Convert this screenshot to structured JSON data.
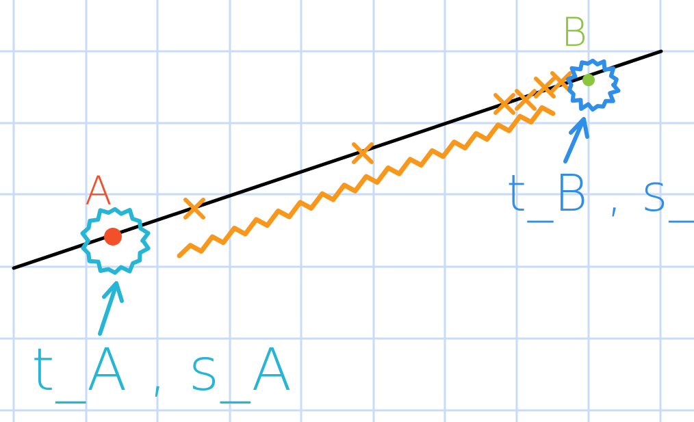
{
  "point_a": {
    "label": "A",
    "note": "t_A , s_A",
    "label_color": "#f2502a",
    "dot_color": "#f2502a",
    "circle_color": "#27b5d6"
  },
  "point_b": {
    "label": "B",
    "note": "t_B , s_B",
    "label_color": "#8cc63f",
    "dot_color": "#8cc63f",
    "circle_color": "#2f8ee8"
  },
  "colors": {
    "grid": "#c8dcf7",
    "line": "#000000",
    "marks": "#f7981d",
    "path": "#f7981d",
    "arrow_a": "#27b5d6",
    "arrow_b": "#2f8ee8"
  }
}
